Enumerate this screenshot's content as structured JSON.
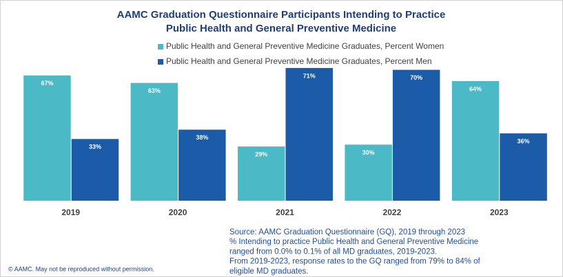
{
  "chart_data": {
    "type": "bar",
    "title": [
      "AAMC Graduation Questionnaire Participants Intending to Practice",
      "Public Health and General Preventive Medicine"
    ],
    "categories": [
      "2019",
      "2020",
      "2021",
      "2022",
      "2023"
    ],
    "series": [
      {
        "name": "Public Health and General Preventive Medicine Graduates, Percent Women",
        "color": "#4cbac6",
        "values": [
          67,
          63,
          29,
          30,
          64
        ],
        "value_labels": [
          "67%",
          "63%",
          "29%",
          "30%",
          "64%"
        ]
      },
      {
        "name": "Public Health and General Preventive Medicine Graduates, Percent Men",
        "color": "#1b5ba8",
        "values": [
          33,
          38,
          71,
          70,
          36
        ],
        "value_labels": [
          "33%",
          "38%",
          "71%",
          "70%",
          "36%"
        ]
      }
    ],
    "ylim": [
      0,
      75
    ],
    "source": [
      "Source: AAMC Graduation Questionnaire (GQ), 2019 through 2023",
      "% Intending to practice Public Health and General Preventive Medicine",
      "ranged from 0.0% to 0.1% of all MD graduates, 2019-2023.",
      "From 2019-2023, response rates to the GQ ranged from 79% to 84% of",
      "eligible MD graduates."
    ],
    "copyright": "© AAMC. May not be reproduced without permission."
  }
}
